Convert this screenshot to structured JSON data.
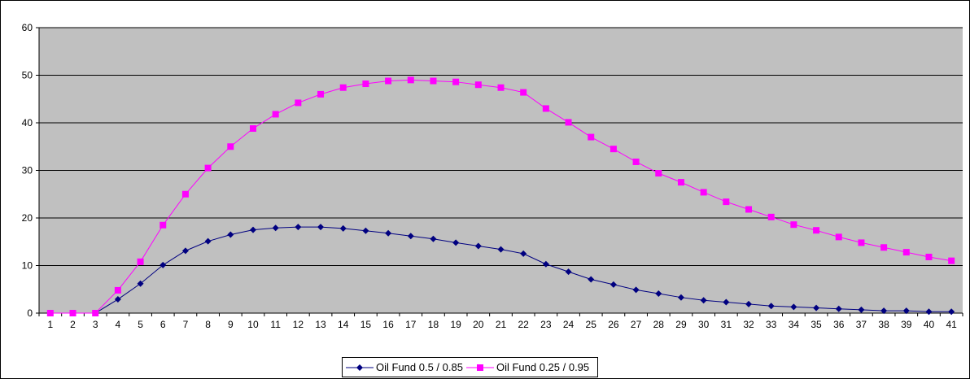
{
  "chart_data": {
    "type": "line",
    "title": "",
    "xlabel": "",
    "ylabel": "",
    "x": [
      1,
      2,
      3,
      4,
      5,
      6,
      7,
      8,
      9,
      10,
      11,
      12,
      13,
      14,
      15,
      16,
      17,
      18,
      19,
      20,
      21,
      22,
      23,
      24,
      25,
      26,
      27,
      28,
      29,
      30,
      31,
      32,
      33,
      34,
      35,
      36,
      37,
      38,
      39,
      40,
      41
    ],
    "ylim": [
      0,
      60
    ],
    "yticks": [
      0,
      10,
      20,
      30,
      40,
      50,
      60
    ],
    "grid": true,
    "legend_position": "bottom",
    "plot_background": "#c0c0c0",
    "series": [
      {
        "name": "Oil Fund 0.5 / 0.85",
        "color": "#000080",
        "marker": "diamond",
        "values": [
          0,
          0,
          0,
          2.9,
          6.2,
          10.1,
          13.1,
          15.1,
          16.5,
          17.5,
          17.9,
          18.1,
          18.1,
          17.8,
          17.3,
          16.8,
          16.2,
          15.6,
          14.8,
          14.1,
          13.4,
          12.5,
          10.3,
          8.7,
          7.1,
          6.0,
          4.9,
          4.1,
          3.3,
          2.7,
          2.3,
          1.9,
          1.5,
          1.3,
          1.1,
          0.9,
          0.7,
          0.5,
          0.5,
          0.3,
          0.3
        ]
      },
      {
        "name": "Oil Fund 0.25 / 0.95",
        "color": "#ff00ff",
        "marker": "square",
        "values": [
          0,
          0,
          0,
          4.8,
          10.8,
          18.5,
          25.0,
          30.5,
          35.0,
          38.8,
          41.8,
          44.2,
          46.0,
          47.4,
          48.2,
          48.8,
          49.0,
          48.8,
          48.6,
          48.0,
          47.4,
          46.4,
          43.0,
          40.1,
          37.0,
          34.5,
          31.8,
          29.4,
          27.5,
          25.4,
          23.4,
          21.8,
          20.2,
          18.6,
          17.4,
          16.0,
          14.8,
          13.8,
          12.8,
          11.8,
          11.0
        ]
      }
    ]
  }
}
